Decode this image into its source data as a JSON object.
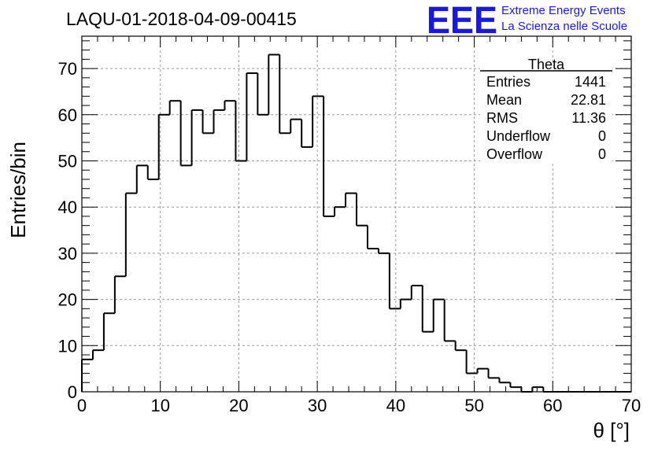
{
  "header": {
    "run_title": "LAQU-01-2018-04-09-00415",
    "logo_mark": "EEE",
    "logo_line1": "Extreme Energy Events",
    "logo_line2": "La Scienza nelle Scuole",
    "logo_color": "#1818e6"
  },
  "stats_box": {
    "title": "Theta",
    "rows": [
      {
        "label": "Entries",
        "value": "1441"
      },
      {
        "label": "Mean",
        "value": "22.81"
      },
      {
        "label": "RMS",
        "value": "11.36"
      },
      {
        "label": "Underflow",
        "value": "0"
      },
      {
        "label": "Overflow",
        "value": "0"
      }
    ]
  },
  "chart_data": {
    "type": "bar",
    "style": "step-histogram",
    "title": "LAQU-01-2018-04-09-00415",
    "xlabel": "θ [°]",
    "ylabel": "Entries/bin",
    "xlim": [
      0,
      70
    ],
    "ylim": [
      0,
      77
    ],
    "grid": true,
    "legend": "top-right",
    "bin_width": 1.4,
    "x_ticks": [
      "0",
      "10",
      "20",
      "30",
      "40",
      "50",
      "60",
      "70"
    ],
    "y_ticks": [
      "0",
      "10",
      "20",
      "30",
      "40",
      "50",
      "60",
      "70"
    ],
    "values": [
      7,
      9,
      17,
      25,
      43,
      49,
      46,
      60,
      63,
      49,
      61,
      56,
      61,
      63,
      50,
      69,
      60,
      73,
      56,
      59,
      53,
      64,
      38,
      40,
      43,
      36,
      31,
      30,
      18,
      20,
      23,
      13,
      20,
      11,
      9,
      4,
      5,
      3,
      2,
      1,
      0,
      1,
      0,
      0,
      0,
      0,
      0,
      0,
      0,
      0
    ]
  }
}
